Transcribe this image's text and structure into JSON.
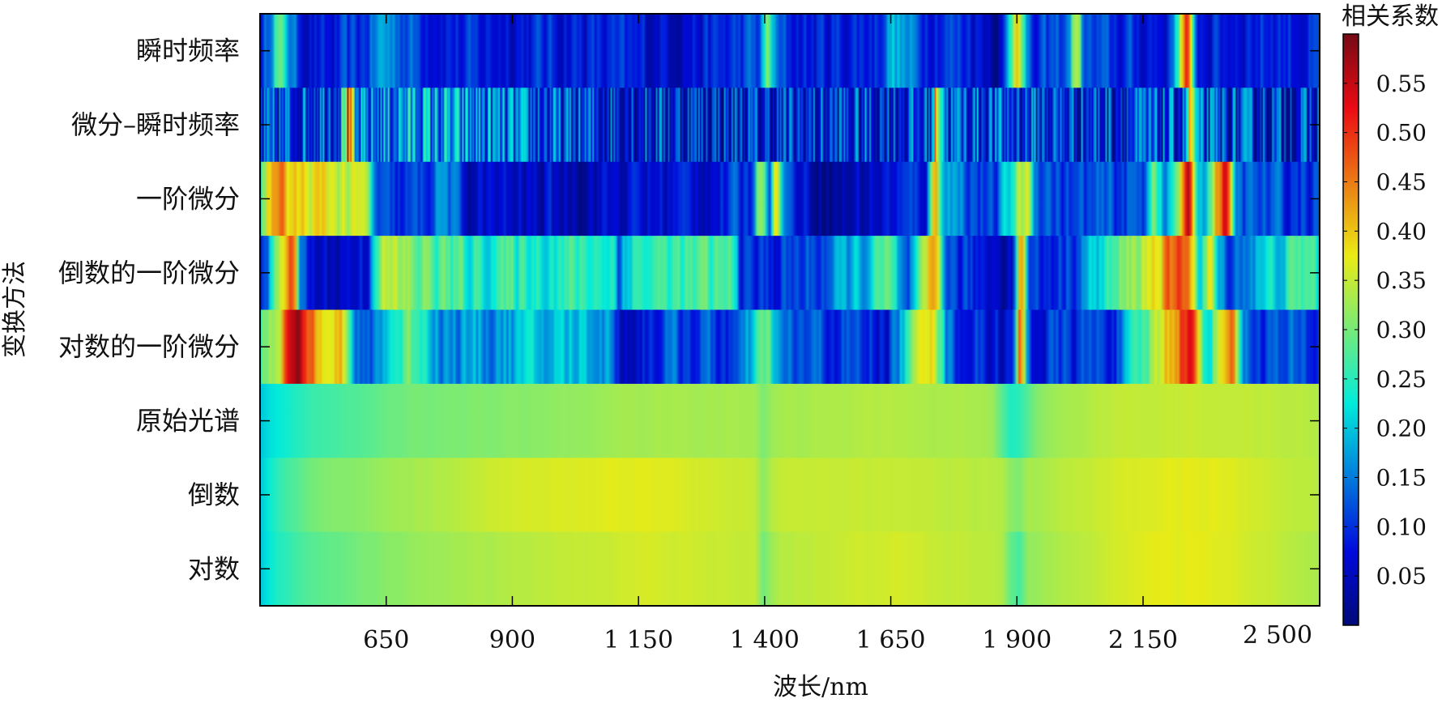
{
  "chart_data": {
    "type": "heatmap",
    "title": "",
    "xlabel": "波长/nm",
    "ylabel": "变换方法",
    "xlim": [
      400,
      2500
    ],
    "xticks": [
      650,
      900,
      1150,
      1400,
      1650,
      1900,
      2150,
      2500
    ],
    "xtick_labels": [
      "650",
      "900",
      "1 150",
      "1 400",
      "1 650",
      "1 900",
      "2 150",
      "2 500"
    ],
    "colorbar": {
      "title": "相关系数",
      "range": [
        0.0,
        0.6
      ],
      "ticks": [
        0.05,
        0.1,
        0.15,
        0.2,
        0.25,
        0.3,
        0.35,
        0.4,
        0.45,
        0.5,
        0.55
      ],
      "tick_labels": [
        "0.05",
        "0.10",
        "0.15",
        "0.20",
        "0.25",
        "0.30",
        "0.35",
        "0.40",
        "0.45",
        "0.50",
        "0.55"
      ],
      "colormap": "jet"
    },
    "rows": [
      {
        "label": "瞬时频率",
        "style": "banded",
        "base": 0.08,
        "profile": [
          [
            400,
            0.05
          ],
          [
            430,
            0.3
          ],
          [
            470,
            0.1
          ],
          [
            520,
            0.06
          ],
          [
            600,
            0.1
          ],
          [
            640,
            0.18
          ],
          [
            700,
            0.12
          ],
          [
            800,
            0.08
          ],
          [
            1000,
            0.09
          ],
          [
            1150,
            0.07
          ],
          [
            1300,
            0.08
          ],
          [
            1390,
            0.12
          ],
          [
            1405,
            0.35
          ],
          [
            1420,
            0.1
          ],
          [
            1500,
            0.08
          ],
          [
            1620,
            0.1
          ],
          [
            1650,
            0.2
          ],
          [
            1700,
            0.12
          ],
          [
            1800,
            0.1
          ],
          [
            1870,
            0.04
          ],
          [
            1900,
            0.5
          ],
          [
            1920,
            0.06
          ],
          [
            2000,
            0.14
          ],
          [
            2015,
            0.42
          ],
          [
            2030,
            0.1
          ],
          [
            2200,
            0.08
          ],
          [
            2235,
            0.55
          ],
          [
            2250,
            0.08
          ],
          [
            2400,
            0.1
          ],
          [
            2500,
            0.08
          ]
        ]
      },
      {
        "label": "微分–瞬时频率",
        "style": "noisy",
        "base": 0.06,
        "profile": [
          [
            400,
            0.08
          ],
          [
            560,
            0.15
          ],
          [
            575,
            0.5
          ],
          [
            590,
            0.12
          ],
          [
            700,
            0.18
          ],
          [
            1000,
            0.1
          ],
          [
            1400,
            0.08
          ],
          [
            1730,
            0.1
          ],
          [
            1740,
            0.45
          ],
          [
            1760,
            0.12
          ],
          [
            2000,
            0.1
          ],
          [
            2230,
            0.1
          ],
          [
            2245,
            0.4
          ],
          [
            2260,
            0.1
          ],
          [
            2500,
            0.08
          ]
        ]
      },
      {
        "label": "一阶微分",
        "style": "banded",
        "base": 0.06,
        "profile": [
          [
            400,
            0.35
          ],
          [
            430,
            0.45
          ],
          [
            460,
            0.38
          ],
          [
            550,
            0.36
          ],
          [
            610,
            0.32
          ],
          [
            630,
            0.08
          ],
          [
            720,
            0.1
          ],
          [
            760,
            0.18
          ],
          [
            800,
            0.06
          ],
          [
            900,
            0.05
          ],
          [
            1100,
            0.06
          ],
          [
            1300,
            0.08
          ],
          [
            1370,
            0.1
          ],
          [
            1390,
            0.4
          ],
          [
            1410,
            0.12
          ],
          [
            1420,
            0.45
          ],
          [
            1440,
            0.1
          ],
          [
            1530,
            0.02
          ],
          [
            1580,
            0.05
          ],
          [
            1720,
            0.1
          ],
          [
            1735,
            0.5
          ],
          [
            1750,
            0.2
          ],
          [
            1850,
            0.08
          ],
          [
            1920,
            0.4
          ],
          [
            1930,
            0.15
          ],
          [
            2000,
            0.1
          ],
          [
            2150,
            0.12
          ],
          [
            2170,
            0.38
          ],
          [
            2190,
            0.1
          ],
          [
            2240,
            0.55
          ],
          [
            2260,
            0.12
          ],
          [
            2310,
            0.58
          ],
          [
            2330,
            0.12
          ],
          [
            2500,
            0.1
          ]
        ]
      },
      {
        "label": "倒数的一阶微分",
        "style": "banded",
        "base": 0.06,
        "profile": [
          [
            400,
            0.06
          ],
          [
            460,
            0.55
          ],
          [
            480,
            0.08
          ],
          [
            520,
            0.05
          ],
          [
            610,
            0.08
          ],
          [
            630,
            0.34
          ],
          [
            700,
            0.3
          ],
          [
            800,
            0.25
          ],
          [
            1100,
            0.25
          ],
          [
            1110,
            0.05
          ],
          [
            1120,
            0.25
          ],
          [
            1340,
            0.26
          ],
          [
            1350,
            0.08
          ],
          [
            1500,
            0.12
          ],
          [
            1600,
            0.2
          ],
          [
            1640,
            0.28
          ],
          [
            1680,
            0.08
          ],
          [
            1735,
            0.45
          ],
          [
            1760,
            0.1
          ],
          [
            1890,
            0.06
          ],
          [
            1905,
            0.55
          ],
          [
            1920,
            0.08
          ],
          [
            2000,
            0.12
          ],
          [
            2240,
            0.5
          ],
          [
            2260,
            0.15
          ],
          [
            2280,
            0.4
          ],
          [
            2300,
            0.12
          ],
          [
            2480,
            0.28
          ],
          [
            2500,
            0.2
          ]
        ]
      },
      {
        "label": "对数的一阶微分",
        "style": "banded",
        "base": 0.06,
        "profile": [
          [
            400,
            0.3
          ],
          [
            440,
            0.4
          ],
          [
            460,
            0.58
          ],
          [
            500,
            0.45
          ],
          [
            560,
            0.4
          ],
          [
            570,
            0.25
          ],
          [
            600,
            0.08
          ],
          [
            640,
            0.2
          ],
          [
            700,
            0.3
          ],
          [
            760,
            0.16
          ],
          [
            900,
            0.18
          ],
          [
            1050,
            0.2
          ],
          [
            1100,
            0.15
          ],
          [
            1110,
            0.05
          ],
          [
            1200,
            0.12
          ],
          [
            1350,
            0.1
          ],
          [
            1400,
            0.3
          ],
          [
            1430,
            0.12
          ],
          [
            1600,
            0.1
          ],
          [
            1640,
            0.08
          ],
          [
            1730,
            0.45
          ],
          [
            1760,
            0.12
          ],
          [
            1890,
            0.06
          ],
          [
            1905,
            0.55
          ],
          [
            1920,
            0.08
          ],
          [
            2100,
            0.12
          ],
          [
            2240,
            0.55
          ],
          [
            2270,
            0.2
          ],
          [
            2320,
            0.5
          ],
          [
            2350,
            0.12
          ],
          [
            2500,
            0.1
          ]
        ]
      },
      {
        "label": "原始光谱",
        "style": "smooth",
        "base": 0.3,
        "profile": [
          [
            400,
            0.2
          ],
          [
            420,
            0.22
          ],
          [
            500,
            0.26
          ],
          [
            600,
            0.28
          ],
          [
            700,
            0.3
          ],
          [
            900,
            0.31
          ],
          [
            1150,
            0.33
          ],
          [
            1380,
            0.33
          ],
          [
            1400,
            0.3
          ],
          [
            1420,
            0.33
          ],
          [
            1650,
            0.34
          ],
          [
            1850,
            0.33
          ],
          [
            1890,
            0.24
          ],
          [
            1910,
            0.26
          ],
          [
            1950,
            0.32
          ],
          [
            2100,
            0.35
          ],
          [
            2300,
            0.35
          ],
          [
            2500,
            0.34
          ]
        ]
      },
      {
        "label": "倒数",
        "style": "smooth",
        "base": 0.33,
        "profile": [
          [
            400,
            0.2
          ],
          [
            430,
            0.25
          ],
          [
            500,
            0.3
          ],
          [
            700,
            0.33
          ],
          [
            900,
            0.36
          ],
          [
            1150,
            0.37
          ],
          [
            1380,
            0.35
          ],
          [
            1400,
            0.31
          ],
          [
            1420,
            0.35
          ],
          [
            1650,
            0.35
          ],
          [
            1870,
            0.34
          ],
          [
            1900,
            0.3
          ],
          [
            1920,
            0.33
          ],
          [
            2100,
            0.36
          ],
          [
            2200,
            0.37
          ],
          [
            2300,
            0.37
          ],
          [
            2500,
            0.34
          ]
        ]
      },
      {
        "label": "对数",
        "style": "smooth",
        "base": 0.33,
        "profile": [
          [
            400,
            0.2
          ],
          [
            430,
            0.24
          ],
          [
            500,
            0.28
          ],
          [
            600,
            0.3
          ],
          [
            700,
            0.32
          ],
          [
            900,
            0.34
          ],
          [
            1150,
            0.36
          ],
          [
            1380,
            0.35
          ],
          [
            1400,
            0.29
          ],
          [
            1420,
            0.34
          ],
          [
            1650,
            0.36
          ],
          [
            1870,
            0.34
          ],
          [
            1900,
            0.25
          ],
          [
            1920,
            0.32
          ],
          [
            2150,
            0.37
          ],
          [
            2300,
            0.37
          ],
          [
            2500,
            0.33
          ]
        ]
      }
    ]
  }
}
